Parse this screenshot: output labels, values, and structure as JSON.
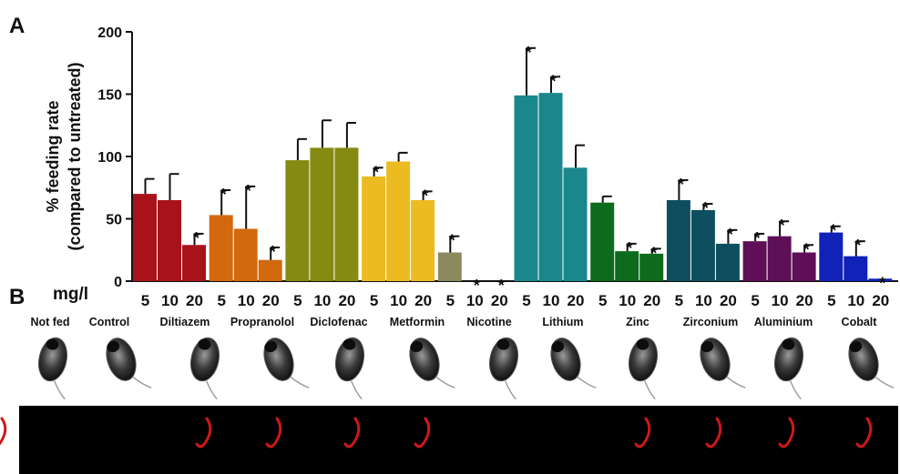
{
  "panel_labels": {
    "a": "A",
    "b": "B"
  },
  "chart_data": {
    "type": "bar",
    "ylabel_line1": "% feeding rate",
    "ylabel_line2": "(compared to untreated)",
    "ylim": [
      0,
      200
    ],
    "yticks": [
      "0",
      "50",
      "100",
      "150",
      "200"
    ],
    "dose_unit": "mg/l",
    "significance_marker": "*",
    "groups": [
      {
        "name": "Diltiazem",
        "color": "#a8131b",
        "bars": [
          {
            "dose": "5",
            "value": 70,
            "err": 12,
            "sig": false
          },
          {
            "dose": "10",
            "value": 65,
            "err": 21,
            "sig": false
          },
          {
            "dose": "20",
            "value": 29,
            "err": 9,
            "sig": true
          }
        ]
      },
      {
        "name": "Propranolol",
        "color": "#d2690e",
        "bars": [
          {
            "dose": "5",
            "value": 53,
            "err": 20,
            "sig": true
          },
          {
            "dose": "10",
            "value": 42,
            "err": 34,
            "sig": true
          },
          {
            "dose": "20",
            "value": 17,
            "err": 10,
            "sig": true
          }
        ]
      },
      {
        "name": "Diclofenac",
        "color": "#858a13",
        "bars": [
          {
            "dose": "5",
            "value": 97,
            "err": 17,
            "sig": false
          },
          {
            "dose": "10",
            "value": 107,
            "err": 22,
            "sig": false
          },
          {
            "dose": "20",
            "value": 107,
            "err": 20,
            "sig": false
          }
        ]
      },
      {
        "name": "Metformin",
        "color": "#ecbb22",
        "bars": [
          {
            "dose": "5",
            "value": 84,
            "err": 7,
            "sig": true
          },
          {
            "dose": "10",
            "value": 96,
            "err": 7,
            "sig": false
          },
          {
            "dose": "20",
            "value": 65,
            "err": 7,
            "sig": true
          }
        ]
      },
      {
        "name": "Nicotine",
        "color": "#8b8a5e",
        "bars": [
          {
            "dose": "5",
            "value": 23,
            "err": 13,
            "sig": true
          },
          {
            "dose": "10",
            "value": 0,
            "err": 0,
            "sig": true
          },
          {
            "dose": "20",
            "value": 0,
            "err": 0,
            "sig": true
          }
        ]
      },
      {
        "name": "Lithium",
        "color": "#1a878c",
        "bars": [
          {
            "dose": "5",
            "value": 149,
            "err": 38,
            "sig": true
          },
          {
            "dose": "10",
            "value": 151,
            "err": 13,
            "sig": true
          },
          {
            "dose": "20",
            "value": 91,
            "err": 18,
            "sig": false
          }
        ]
      },
      {
        "name": "Zinc",
        "color": "#0c6b1c",
        "bars": [
          {
            "dose": "5",
            "value": 63,
            "err": 5,
            "sig": false
          },
          {
            "dose": "10",
            "value": 24,
            "err": 6,
            "sig": true
          },
          {
            "dose": "20",
            "value": 22,
            "err": 4,
            "sig": true
          }
        ]
      },
      {
        "name": "Zirconium",
        "color": "#0e4f5f",
        "bars": [
          {
            "dose": "5",
            "value": 65,
            "err": 16,
            "sig": true
          },
          {
            "dose": "10",
            "value": 57,
            "err": 5,
            "sig": true
          },
          {
            "dose": "20",
            "value": 30,
            "err": 11,
            "sig": true
          }
        ]
      },
      {
        "name": "Aluminium",
        "color": "#5e0f55",
        "bars": [
          {
            "dose": "5",
            "value": 32,
            "err": 6,
            "sig": true
          },
          {
            "dose": "10",
            "value": 36,
            "err": 12,
            "sig": true
          },
          {
            "dose": "20",
            "value": 23,
            "err": 6,
            "sig": true
          }
        ]
      },
      {
        "name": "Cobalt",
        "color": "#1022b8",
        "bars": [
          {
            "dose": "5",
            "value": 39,
            "err": 5,
            "sig": true
          },
          {
            "dose": "10",
            "value": 20,
            "err": 12,
            "sig": true
          },
          {
            "dose": "20",
            "value": 2,
            "err": 0,
            "sig": true
          }
        ]
      }
    ]
  },
  "panel_b": {
    "labels": [
      "Not fed",
      "Control",
      "Diltiazem",
      "Propranolol",
      "Diclofenac",
      "Metformin",
      "Nicotine",
      "Lithium",
      "Zinc",
      "Zirconium",
      "Aluminium",
      "Cobalt"
    ],
    "gut_visible": [
      false,
      false,
      true,
      true,
      true,
      true,
      true,
      false,
      true,
      true,
      true,
      true
    ]
  }
}
